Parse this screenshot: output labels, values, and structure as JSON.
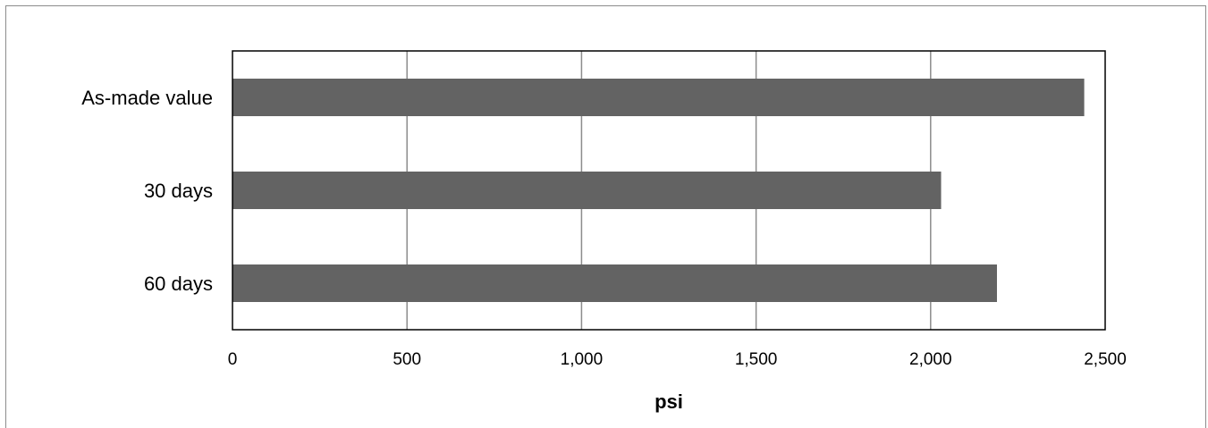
{
  "chart_data": {
    "type": "bar",
    "orientation": "horizontal",
    "categories": [
      "As-made value",
      "30 days",
      "60 days"
    ],
    "values": [
      2440,
      2030,
      2190
    ],
    "xlabel": "psi",
    "ylabel": "",
    "xlim": [
      0,
      2500
    ],
    "x_ticks": [
      0,
      500,
      1000,
      1500,
      2000,
      2500
    ],
    "x_tick_labels": [
      "0",
      "500",
      "1,000",
      "1,500",
      "2,000",
      "2,500"
    ],
    "grid": true,
    "legend": "none",
    "bar_color": "#636363",
    "grid_color": "#8c8c8c"
  }
}
